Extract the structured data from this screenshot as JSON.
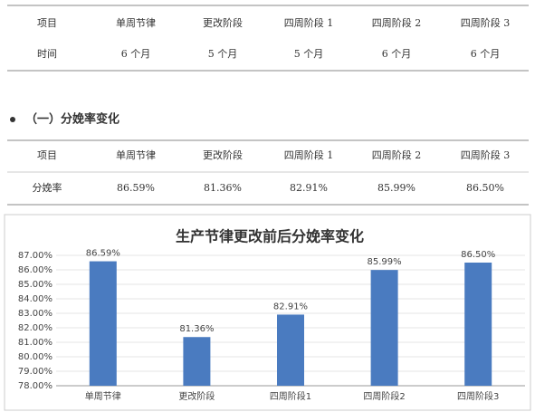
{
  "table1": {
    "rows": [
      [
        "项目",
        "单周节律",
        "更改阶段",
        "四周阶段 1",
        "四周阶段 2",
        "四周阶段 3"
      ],
      [
        "时间",
        "6 个月",
        "5 个月",
        "5 个月",
        "6 个月",
        "6 个月"
      ]
    ]
  },
  "heading": "（一）分娩率变化",
  "table2": {
    "rows": [
      [
        "项目",
        "单周节律",
        "更改阶段",
        "四周阶段 1",
        "四周阶段 2",
        "四周阶段 3"
      ],
      [
        "分娩率",
        "86.59%",
        "81.36%",
        "82.91%",
        "85.99%",
        "86.50%"
      ]
    ]
  },
  "chart_data": {
    "type": "bar",
    "title": "生产节律更改前后分娩率变化",
    "categories": [
      "单周节律",
      "更改阶段",
      "四周阶段1",
      "四周阶段2",
      "四周阶段3"
    ],
    "values": [
      86.59,
      81.36,
      82.91,
      85.99,
      86.5
    ],
    "value_labels": [
      "86.59%",
      "81.36%",
      "82.91%",
      "85.99%",
      "86.50%"
    ],
    "color": "#4a7bc0",
    "ylim": [
      78,
      87
    ],
    "yticks": [
      {
        "value": 78,
        "label": "78.00%"
      },
      {
        "value": 79,
        "label": "79.00%"
      },
      {
        "value": 80,
        "label": "80.00%"
      },
      {
        "value": 81,
        "label": "81.00%"
      },
      {
        "value": 82,
        "label": "82.00%"
      },
      {
        "value": 83,
        "label": "83.00%"
      },
      {
        "value": 84,
        "label": "84.00%"
      },
      {
        "value": 85,
        "label": "85.00%"
      },
      {
        "value": 86,
        "label": "86.00%"
      },
      {
        "value": 87,
        "label": "87.00%"
      }
    ],
    "grid": true
  }
}
